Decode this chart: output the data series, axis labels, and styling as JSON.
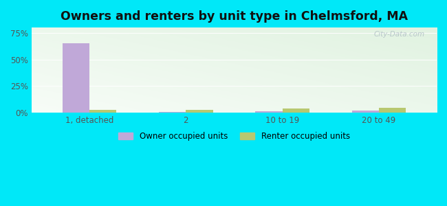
{
  "title": "Owners and renters by unit type in Chelmsford, MA",
  "categories": [
    "1, detached",
    "2",
    "10 to 19",
    "20 to 49"
  ],
  "owner_values": [
    65.0,
    0.6,
    1.0,
    2.0
  ],
  "renter_values": [
    2.5,
    2.8,
    3.5,
    4.2
  ],
  "owner_color": "#c0a8d8",
  "renter_color": "#b8c870",
  "bar_width": 0.28,
  "ylim_max": 80,
  "yticks": [
    0,
    25,
    50,
    75
  ],
  "ytick_labels": [
    "0%",
    "25%",
    "50%",
    "75%"
  ],
  "title_fontsize": 12.5,
  "legend_labels": [
    "Owner occupied units",
    "Renter occupied units"
  ],
  "bg_outer": "#00e8f8",
  "watermark": "City-Data.com",
  "plot_bg_colors": [
    "#e0f5e8",
    "#d8f0e0",
    "#c8ead8"
  ],
  "grid_color": "#e8f0e0"
}
